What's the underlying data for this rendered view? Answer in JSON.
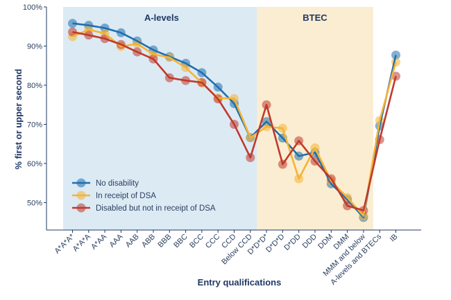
{
  "chart_data": {
    "type": "line",
    "xlabel": "Entry qualifications",
    "ylabel": "% first or upper second",
    "ylim": [
      43,
      100
    ],
    "yticks": [
      {
        "value": 50,
        "label": "50%"
      },
      {
        "value": 60,
        "label": "60%"
      },
      {
        "value": 70,
        "label": "70%"
      },
      {
        "value": 80,
        "label": "80%"
      },
      {
        "value": 90,
        "label": "90%"
      },
      {
        "value": 100,
        "label": "100%"
      }
    ],
    "categories": [
      "A*A*A*",
      "A*A*A",
      "A*AA",
      "AAA",
      "AAB",
      "ABB",
      "BBB",
      "BBC",
      "BCC",
      "CCC",
      "CCD",
      "Below CCD",
      "D*D*D*",
      "D*D*D",
      "D*DD",
      "DDD",
      "DDM",
      "DMM",
      "MMM and below",
      "A-levels and BTECs",
      "IB"
    ],
    "regions": [
      {
        "label": "A-levels",
        "start": 0,
        "end": 11,
        "color": "#dceaf4"
      },
      {
        "label": "BTEC",
        "start": 12,
        "end": 18,
        "color": "#fbedd1"
      }
    ],
    "grid": false,
    "legend_position": "bottom-left",
    "series": [
      {
        "name": "No disability",
        "color": "#1f6fae",
        "values": [
          95.8,
          95.3,
          94.6,
          93.4,
          91.3,
          89.0,
          87.3,
          85.6,
          83.2,
          79.5,
          75.3,
          66.6,
          70.7,
          66.5,
          61.9,
          62.8,
          54.8,
          50.8,
          46.2,
          69.6,
          87.7
        ]
      },
      {
        "name": "In receipt of DSA",
        "color": "#f5b335",
        "values": [
          92.4,
          94.2,
          93.2,
          89.9,
          90.6,
          87.9,
          87.1,
          84.5,
          80.6,
          76.7,
          76.6,
          66.6,
          69.4,
          69.0,
          56.1,
          64.0,
          55.5,
          51.3,
          46.6,
          71.0,
          85.9
        ]
      },
      {
        "name": "Disabled but not in receipt of DSA",
        "color": "#c0392b",
        "values": [
          93.6,
          92.8,
          91.9,
          90.4,
          88.5,
          86.7,
          81.9,
          81.2,
          80.7,
          76.5,
          70.0,
          61.5,
          75.0,
          59.8,
          65.8,
          60.6,
          56.1,
          49.2,
          48.0,
          66.1,
          82.3
        ]
      }
    ]
  }
}
